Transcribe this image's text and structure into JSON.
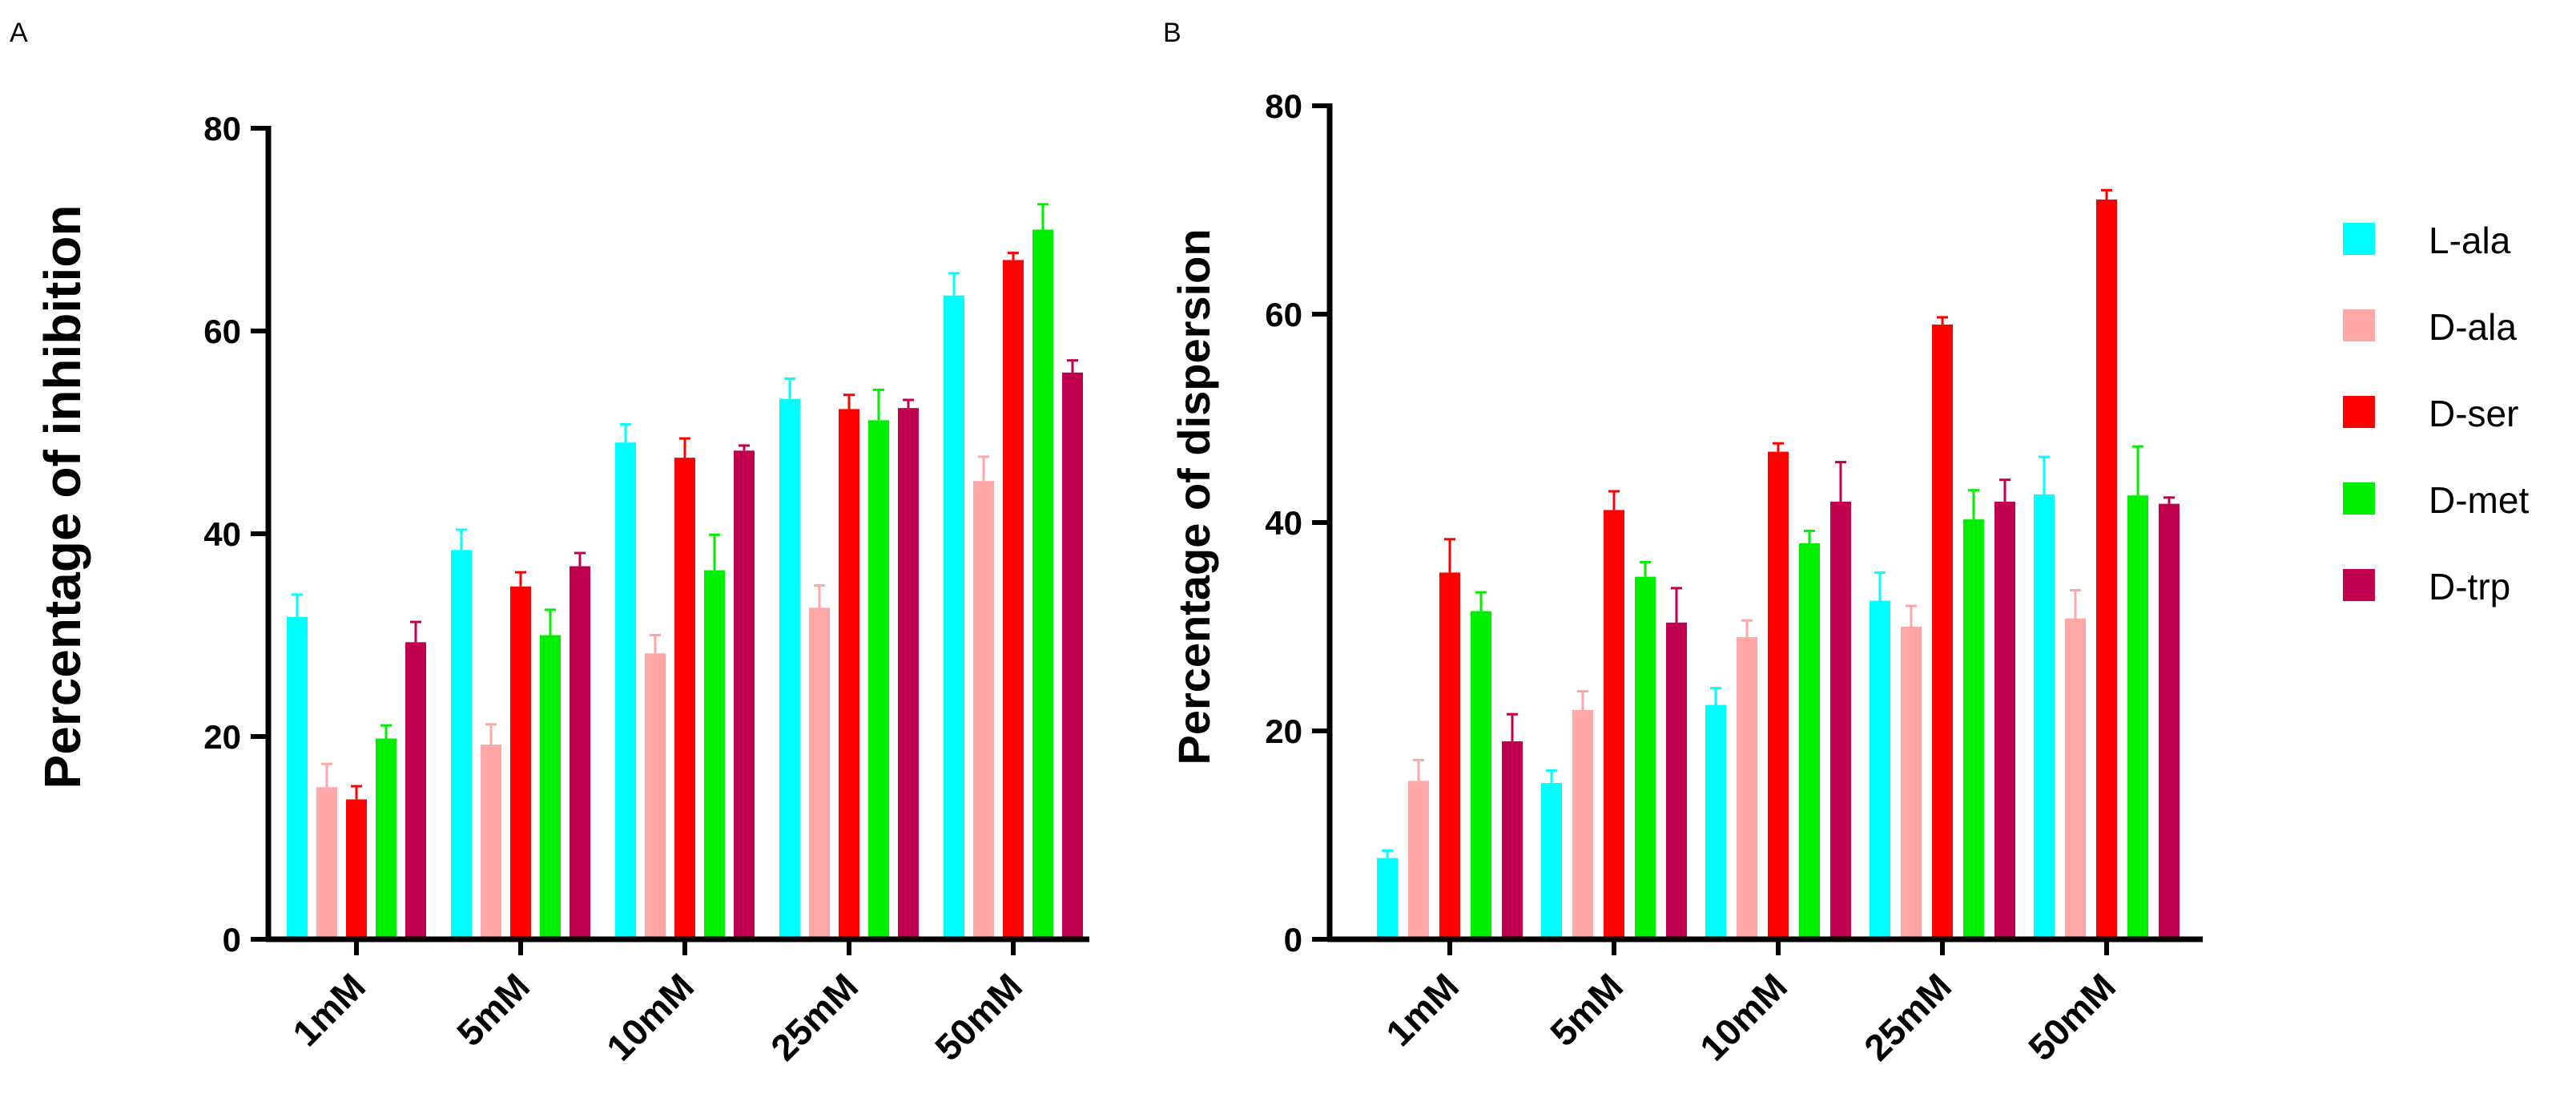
{
  "chart_data": [
    {
      "panel": "A",
      "type": "bar",
      "ylabel": "Percentage of inhibition",
      "xlabel": "",
      "ylim": [
        0,
        80
      ],
      "yticks": [
        "0",
        "20",
        "40",
        "60",
        "80"
      ],
      "categories": [
        "1mM",
        "5mM",
        "10mM",
        "25mM",
        "50mM"
      ],
      "series": [
        {
          "name": "L-ala",
          "color": "#00ffff",
          "values": [
            31.8,
            38.4,
            49.0,
            53.3,
            63.5
          ],
          "errors": [
            2.2,
            2.0,
            1.8,
            2.0,
            2.2
          ]
        },
        {
          "name": "D-ala",
          "color": "#ffa6a6",
          "values": [
            15.0,
            19.2,
            28.2,
            32.7,
            45.2
          ],
          "errors": [
            2.3,
            2.0,
            1.8,
            2.2,
            2.4
          ]
        },
        {
          "name": "D-ser",
          "color": "#ff0000",
          "values": [
            13.8,
            34.8,
            47.5,
            52.3,
            67.0
          ],
          "errors": [
            1.3,
            1.4,
            1.9,
            1.4,
            0.7
          ]
        },
        {
          "name": "D-met",
          "color": "#00ee00",
          "values": [
            19.8,
            30.0,
            36.4,
            51.2,
            70.0
          ],
          "errors": [
            1.3,
            2.5,
            3.5,
            3.0,
            2.5
          ]
        },
        {
          "name": "D-trp",
          "color": "#c0004e",
          "values": [
            29.3,
            36.8,
            48.2,
            52.4,
            55.9
          ],
          "errors": [
            2.0,
            1.3,
            0.5,
            0.8,
            1.2
          ]
        }
      ]
    },
    {
      "panel": "B",
      "type": "bar",
      "ylabel": "Percentage of dispersion",
      "xlabel": "",
      "ylim": [
        0,
        80
      ],
      "yticks": [
        "0",
        "20",
        "40",
        "60",
        "80"
      ],
      "categories": [
        "1mM",
        "5mM",
        "10mM",
        "25mM",
        "50mM"
      ],
      "series": [
        {
          "name": "L-ala",
          "color": "#00ffff",
          "values": [
            7.8,
            15.0,
            22.5,
            32.5,
            42.7
          ],
          "errors": [
            0.7,
            1.2,
            1.6,
            2.7,
            3.6
          ]
        },
        {
          "name": "D-ala",
          "color": "#ffa6a6",
          "values": [
            15.2,
            22.0,
            29.0,
            30.0,
            30.8
          ],
          "errors": [
            2.0,
            1.8,
            1.6,
            2.0,
            2.7
          ]
        },
        {
          "name": "D-ser",
          "color": "#ff0000",
          "values": [
            35.2,
            41.2,
            46.8,
            59.0,
            71.0
          ],
          "errors": [
            3.2,
            1.8,
            0.8,
            0.7,
            0.9
          ]
        },
        {
          "name": "D-met",
          "color": "#00ee00",
          "values": [
            31.5,
            34.8,
            38.0,
            40.3,
            42.6
          ],
          "errors": [
            1.8,
            1.4,
            1.2,
            2.8,
            4.7
          ]
        },
        {
          "name": "D-trp",
          "color": "#c0004e",
          "values": [
            19.0,
            30.4,
            42.0,
            42.0,
            41.8
          ],
          "errors": [
            2.6,
            3.3,
            3.8,
            2.1,
            0.6
          ]
        }
      ]
    }
  ],
  "legend": [
    "L-ala",
    "D-ala",
    "D-ser",
    "D-met",
    "D-trp"
  ]
}
